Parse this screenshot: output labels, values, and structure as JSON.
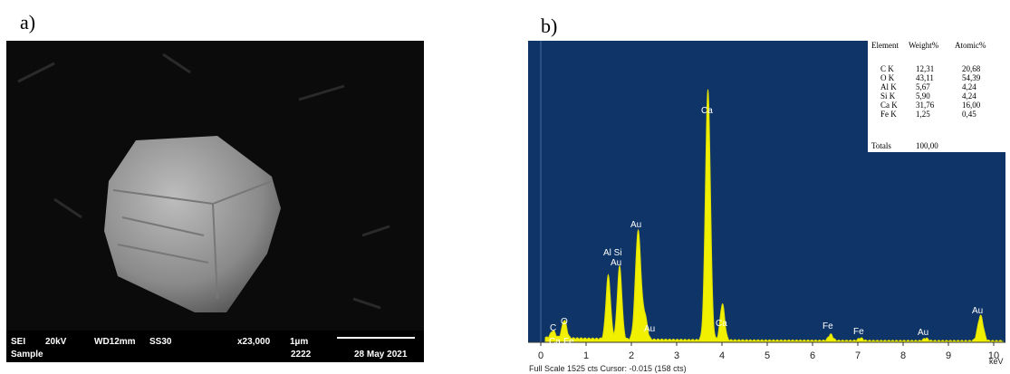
{
  "panel_a": {
    "label": "a)",
    "info": {
      "mode": "SEI",
      "voltage": "20kV",
      "working_distance": "WD12mm",
      "spot_size": "SS30",
      "magnification": "x23,000",
      "scale": "1µm",
      "sample": "Sample",
      "id": "2222",
      "date": "28 May 2021"
    }
  },
  "panel_b": {
    "label": "b)",
    "table": {
      "header": [
        "Element",
        "Weight%",
        "Atomic%"
      ],
      "rows": [
        [
          "C K",
          "12,31",
          "20,68"
        ],
        [
          "O K",
          "43,11",
          "54,39"
        ],
        [
          "Al K",
          "5,67",
          "4,24"
        ],
        [
          "Si K",
          "5,90",
          "4,24"
        ],
        [
          "Ca K",
          "31,76",
          "16,00"
        ],
        [
          "Fe K",
          "1,25",
          "0,45"
        ]
      ],
      "totals": [
        "Totals",
        "100,00"
      ]
    },
    "peak_labels": [
      "Ca",
      "Au",
      "Al Si",
      "Au",
      "Au",
      "Ca",
      "C",
      "O",
      "Ca",
      "Fe",
      "Ca",
      "Fe",
      "Fe",
      "Fe",
      "Au",
      "Au"
    ],
    "x_ticks": [
      "0",
      "1",
      "2",
      "3",
      "4",
      "5",
      "6",
      "7",
      "8",
      "9",
      "10"
    ],
    "x_unit": "keV",
    "status": "Full Scale 1525 cts Cursor: -0.015 (158 cts)"
  }
}
